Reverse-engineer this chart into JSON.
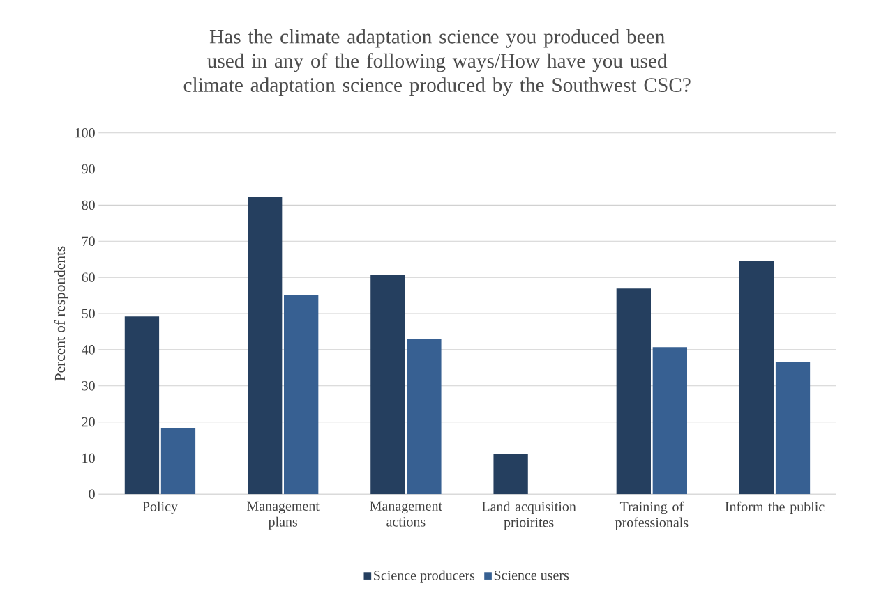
{
  "chart_data": {
    "type": "bar",
    "title": "Has the climate adaptation science you produced been used in any of the following ways/How have you used climate adaptation science produced by the Southwest CSC?",
    "ylabel": "Percent of respondents",
    "categories": [
      "Policy",
      "Management plans",
      "Management actions",
      "Land acquisition prioirites",
      "Training of professionals",
      "Inform the public"
    ],
    "series": [
      {
        "name": "Science producers",
        "color": "#253f5f",
        "values": [
          49.2,
          82.2,
          60.6,
          11.2,
          56.9,
          64.5
        ]
      },
      {
        "name": "Science users",
        "color": "#376092",
        "values": [
          18.3,
          55.0,
          42.9,
          0,
          40.7,
          36.6
        ]
      }
    ],
    "ylim": [
      0,
      100
    ],
    "yticks": [
      0,
      10,
      20,
      30,
      40,
      50,
      60,
      70,
      80,
      90,
      100
    ],
    "grid": "y",
    "legend": "bottom"
  }
}
